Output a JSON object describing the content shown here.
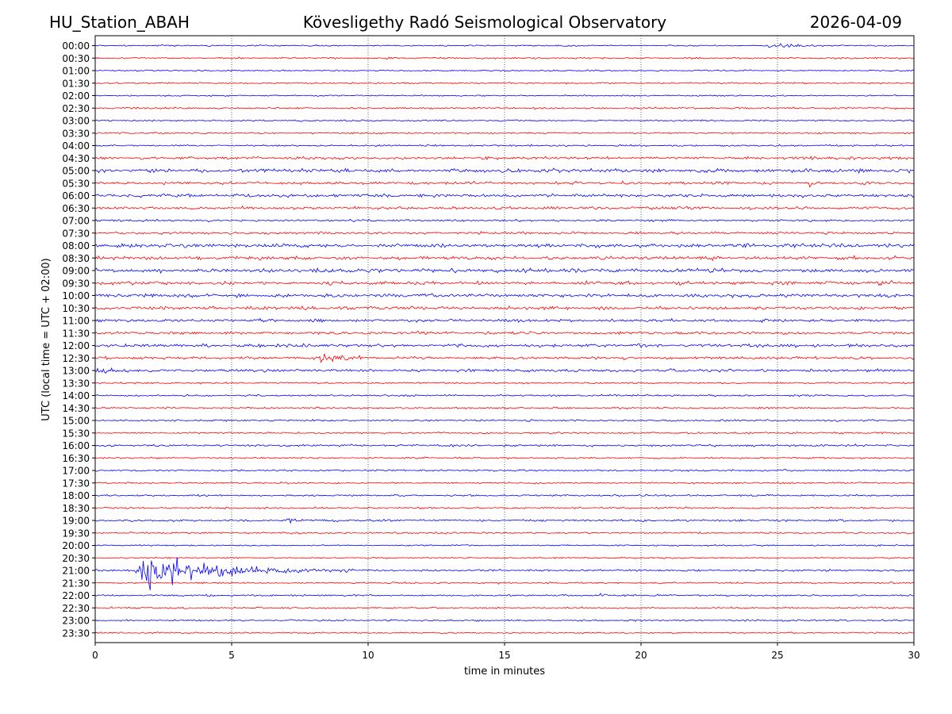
{
  "chart_data": {
    "type": "line",
    "title": "Kövesligethy Radó Seismological Observatory",
    "station": "HU_Station_ABAH",
    "date": "2026-04-09",
    "xlabel": "time in minutes",
    "ylabel": "UTC (local time = UTC + 02:00)",
    "xlim": [
      0,
      30
    ],
    "xticks": [
      0,
      5,
      10,
      15,
      20,
      25,
      30
    ],
    "vgrid": [
      5,
      10,
      15,
      20,
      25
    ],
    "rows": [
      "00:00",
      "00:30",
      "01:00",
      "01:30",
      "02:00",
      "02:30",
      "03:00",
      "03:30",
      "04:00",
      "04:30",
      "05:00",
      "05:30",
      "06:00",
      "06:30",
      "07:00",
      "07:30",
      "08:00",
      "08:30",
      "09:00",
      "09:30",
      "10:00",
      "10:30",
      "11:00",
      "11:30",
      "12:00",
      "12:30",
      "13:00",
      "13:30",
      "14:00",
      "14:30",
      "15:00",
      "15:30",
      "16:00",
      "16:30",
      "17:00",
      "17:30",
      "18:00",
      "18:30",
      "19:00",
      "19:30",
      "20:00",
      "20:30",
      "21:00",
      "21:30",
      "22:00",
      "22:30",
      "23:00",
      "23:30"
    ],
    "series_colors": [
      "#0000ff",
      "#ff0000"
    ],
    "base_noise": [
      0.08,
      0.1,
      0.08,
      0.09,
      0.08,
      0.1,
      0.09,
      0.09,
      0.1,
      0.16,
      0.22,
      0.16,
      0.18,
      0.15,
      0.12,
      0.14,
      0.2,
      0.2,
      0.22,
      0.2,
      0.2,
      0.18,
      0.16,
      0.16,
      0.18,
      0.16,
      0.16,
      0.1,
      0.1,
      0.1,
      0.1,
      0.1,
      0.12,
      0.1,
      0.1,
      0.1,
      0.1,
      0.1,
      0.12,
      0.1,
      0.08,
      0.08,
      0.12,
      0.1,
      0.1,
      0.1,
      0.1,
      0.08
    ],
    "events": [
      {
        "row": "00:00",
        "start": 24.6,
        "duration": 3.0,
        "amplitude": 0.45
      },
      {
        "row": "12:30",
        "start": 8.2,
        "duration": 1.8,
        "amplitude": 0.8
      },
      {
        "row": "13:00",
        "start": 0.0,
        "duration": 2.2,
        "amplitude": 0.5
      },
      {
        "row": "19:00",
        "start": 7.0,
        "duration": 1.3,
        "amplitude": 0.45
      },
      {
        "row": "21:00",
        "start": 1.45,
        "duration": 8.0,
        "amplitude": 2.4
      },
      {
        "row": "06:30",
        "start": 20.6,
        "duration": 1.6,
        "amplitude": 0.3
      },
      {
        "row": "05:30",
        "start": 26.1,
        "duration": 0.5,
        "amplitude": 0.4
      },
      {
        "row": "09:30",
        "start": 28.7,
        "duration": 0.9,
        "amplitude": 0.3
      },
      {
        "row": "22:00",
        "start": 18.5,
        "duration": 0.6,
        "amplitude": 0.3
      }
    ]
  }
}
